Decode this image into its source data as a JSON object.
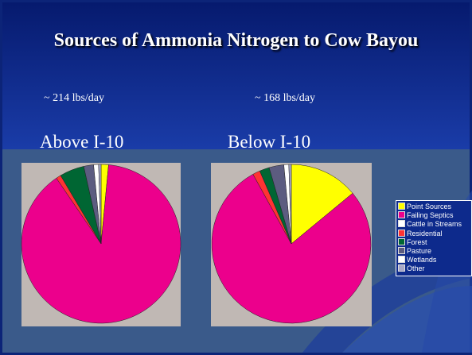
{
  "slide_title": "Sources of Ammonia Nitrogen to Cow Bayou",
  "legend": {
    "categories": [
      "Point Sources",
      "Failing Septics",
      "Cattle in Streams",
      "Residential",
      "Forest",
      "Pasture",
      "Wetlands",
      "Other"
    ],
    "colors": [
      "#ffff00",
      "#ec008c",
      "#ffffff",
      "#ff3333",
      "#006633",
      "#5c5c80",
      "#ffffff",
      "#a8a8c8"
    ]
  },
  "chart_data": [
    {
      "type": "pie",
      "subtitle": "~ 214 lbs/day",
      "title": "Above I-10",
      "values": [
        1.5,
        89,
        0,
        1,
        5,
        2,
        1,
        0.5
      ]
    },
    {
      "type": "pie",
      "subtitle": "~ 168 lbs/day",
      "title": "Below I-10",
      "values": [
        14,
        78,
        0,
        1.5,
        2,
        3,
        1,
        0.5
      ]
    }
  ]
}
